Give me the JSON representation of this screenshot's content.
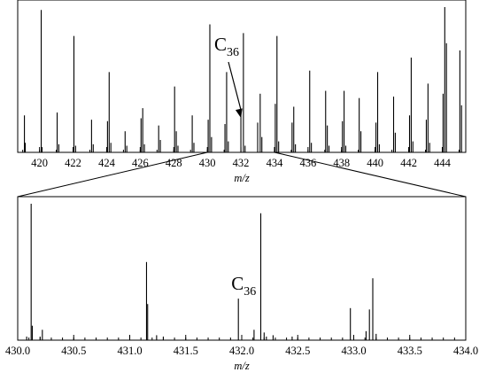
{
  "chart_data": [
    {
      "type": "bar",
      "xlabel": "m/z",
      "ylabel": "",
      "xlim": [
        418.7,
        445.4
      ],
      "ylim": [
        0,
        1
      ],
      "grid": false,
      "xticks": [
        "420",
        "422",
        "424",
        "426",
        "428",
        "430",
        "432",
        "434",
        "436",
        "438",
        "440",
        "442",
        "444"
      ],
      "annotation": {
        "base": "C",
        "sub": "36",
        "x": 432.0
      },
      "peaks": {
        "x": [
          419.1,
          419.15,
          420.1,
          420.15,
          421.05,
          421.15,
          422.05,
          422.15,
          423.1,
          423.2,
          424.05,
          424.15,
          424.25,
          425.1,
          425.2,
          426.05,
          426.15,
          426.25,
          427.1,
          427.2,
          428.05,
          428.15,
          428.25,
          429.1,
          429.2,
          430.05,
          430.15,
          430.25,
          431.05,
          431.15,
          431.25,
          432.0,
          432.15,
          432.25,
          433.0,
          433.15,
          433.25,
          434.05,
          434.15,
          434.25,
          435.05,
          435.15,
          435.25,
          436.1,
          436.2,
          437.05,
          437.15,
          437.25,
          438.05,
          438.15,
          438.25,
          439.05,
          439.15,
          440.05,
          440.15,
          440.25,
          441.1,
          441.2,
          442.05,
          442.15,
          442.25,
          443.05,
          443.15,
          443.25,
          444.05,
          444.15,
          444.25,
          445.05,
          445.15
        ],
        "y": [
          0.25,
          0.06,
          0.98,
          0.03,
          0.27,
          0.05,
          0.8,
          0.04,
          0.22,
          0.05,
          0.21,
          0.55,
          0.06,
          0.14,
          0.04,
          0.23,
          0.3,
          0.05,
          0.18,
          0.08,
          0.45,
          0.14,
          0.04,
          0.25,
          0.06,
          0.22,
          0.88,
          0.1,
          0.19,
          0.55,
          0.07,
          0.27,
          0.82,
          0.04,
          0.2,
          0.4,
          0.1,
          0.33,
          0.8,
          0.07,
          0.2,
          0.31,
          0.05,
          0.56,
          0.06,
          0.42,
          0.18,
          0.04,
          0.21,
          0.42,
          0.04,
          0.37,
          0.14,
          0.2,
          0.55,
          0.05,
          0.38,
          0.13,
          0.25,
          0.65,
          0.07,
          0.22,
          0.47,
          0.06,
          0.4,
          1.0,
          0.75,
          0.7,
          0.32
        ]
      }
    },
    {
      "type": "bar",
      "xlabel": "m/z",
      "ylabel": "",
      "xlim": [
        430.0,
        434.0
      ],
      "ylim": [
        0,
        1
      ],
      "grid": false,
      "xticks": [
        "430.0",
        "430.5",
        "431.0",
        "431.5",
        "432.0",
        "432.5",
        "433.0",
        "433.5",
        "434.0"
      ],
      "annotation": {
        "base": "C",
        "sub": "36",
        "x": 431.97
      },
      "peaks": {
        "x": [
          430.12,
          430.13,
          430.22,
          430.08,
          430.2,
          431.0,
          431.15,
          431.16,
          431.24,
          431.3,
          431.97,
          432.11,
          432.17,
          432.2,
          432.22,
          432.28,
          432.45,
          432.97,
          433.11,
          433.14,
          433.17,
          433.2
        ],
        "y": [
          1.0,
          0.1,
          0.07,
          0.02,
          0.02,
          0.03,
          0.57,
          0.26,
          0.03,
          0.02,
          0.3,
          0.07,
          0.93,
          0.05,
          0.02,
          0.03,
          0.02,
          0.23,
          0.06,
          0.22,
          0.45,
          0.04
        ]
      }
    }
  ]
}
